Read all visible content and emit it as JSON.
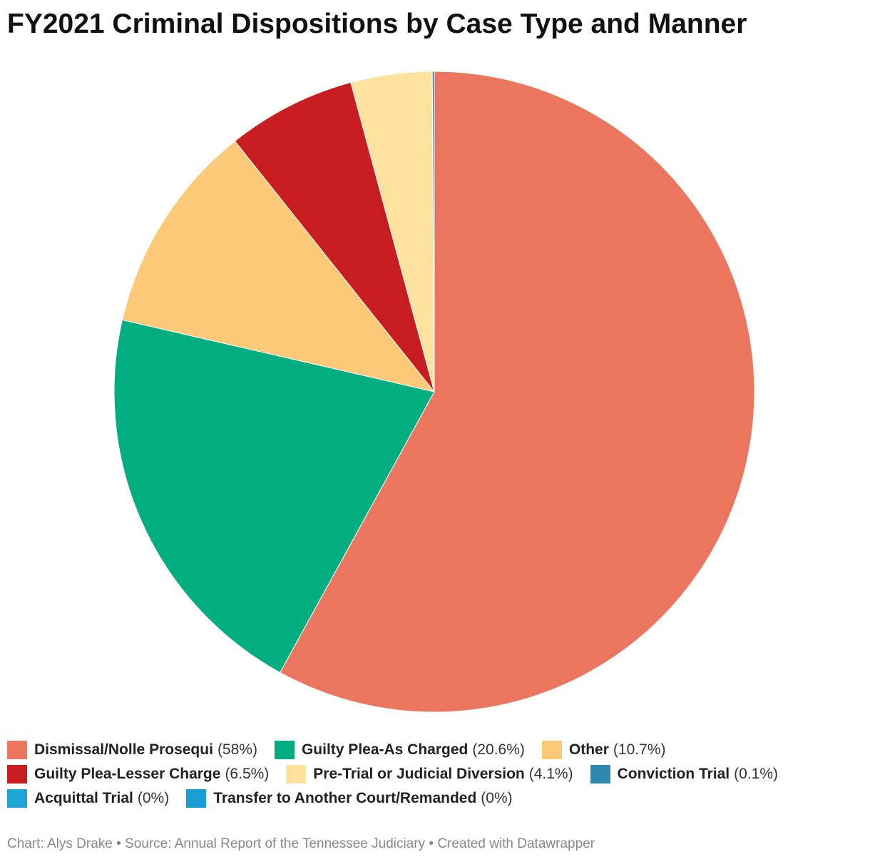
{
  "chart_data": {
    "type": "pie",
    "title": "FY2021 Criminal Dispositions by Case Type and Manner",
    "categories": [
      "Dismissal/Nolle Prosequi",
      "Guilty Plea-As Charged",
      "Other",
      "Guilty Plea-Lesser Charge",
      "Pre-Trial or Judicial Diversion",
      "Conviction Trial",
      "Acquittal Trial",
      "Transfer to Another Court/Remanded"
    ],
    "values": [
      58,
      20.6,
      10.7,
      6.5,
      4.1,
      0.1,
      0,
      0
    ],
    "value_labels": [
      "(58%)",
      "(20.6%)",
      "(10.7%)",
      "(6.5%)",
      "(4.1%)",
      "(0.1%)",
      "(0%)",
      "(0%)"
    ],
    "colors": [
      "#eb7660",
      "#00ae7f",
      "#fcc978",
      "#c71d1f",
      "#fee29d",
      "#2e89af",
      "#1fa4d6",
      "#1a9dd2"
    ],
    "footer": "Chart: Alys Drake • Source: Annual Report of the Tennessee Judiciary  • Created with Datawrapper"
  }
}
